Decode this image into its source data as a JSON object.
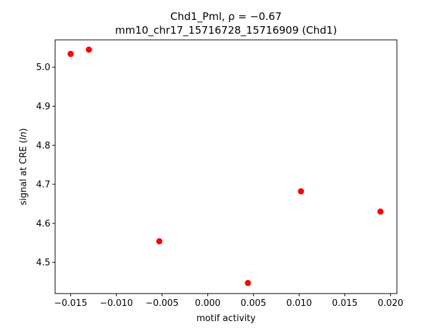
{
  "chart_data": {
    "type": "scatter",
    "title_line1": "Chd1_Pml, ρ = −0.67",
    "title_line2": "mm10_chr17_15716728_15716909 (Chd1)",
    "xlabel": "motif activity",
    "ylabel_prefix": "signal at CRE (",
    "ylabel_italic": "ln",
    "ylabel_suffix": ")",
    "xlim": [
      -0.0167,
      0.0207
    ],
    "ylim": [
      4.42,
      5.07
    ],
    "xticks": [
      -0.015,
      -0.01,
      -0.005,
      0.0,
      0.005,
      0.01,
      0.015,
      0.02
    ],
    "xtick_labels": [
      "−0.015",
      "−0.010",
      "−0.005",
      "0.000",
      "0.005",
      "0.010",
      "0.015",
      "0.020"
    ],
    "yticks": [
      4.5,
      4.6,
      4.7,
      4.8,
      4.9,
      5.0
    ],
    "ytick_labels": [
      "4.5",
      "4.6",
      "4.7",
      "4.8",
      "4.9",
      "5.0"
    ],
    "grid": false,
    "marker_color": "#ff0000",
    "points": [
      {
        "x": -0.015,
        "y": 5.034
      },
      {
        "x": -0.013,
        "y": 5.045
      },
      {
        "x": -0.0053,
        "y": 4.554
      },
      {
        "x": 0.0044,
        "y": 4.447
      },
      {
        "x": 0.0102,
        "y": 4.682
      },
      {
        "x": 0.0189,
        "y": 4.63
      }
    ]
  }
}
